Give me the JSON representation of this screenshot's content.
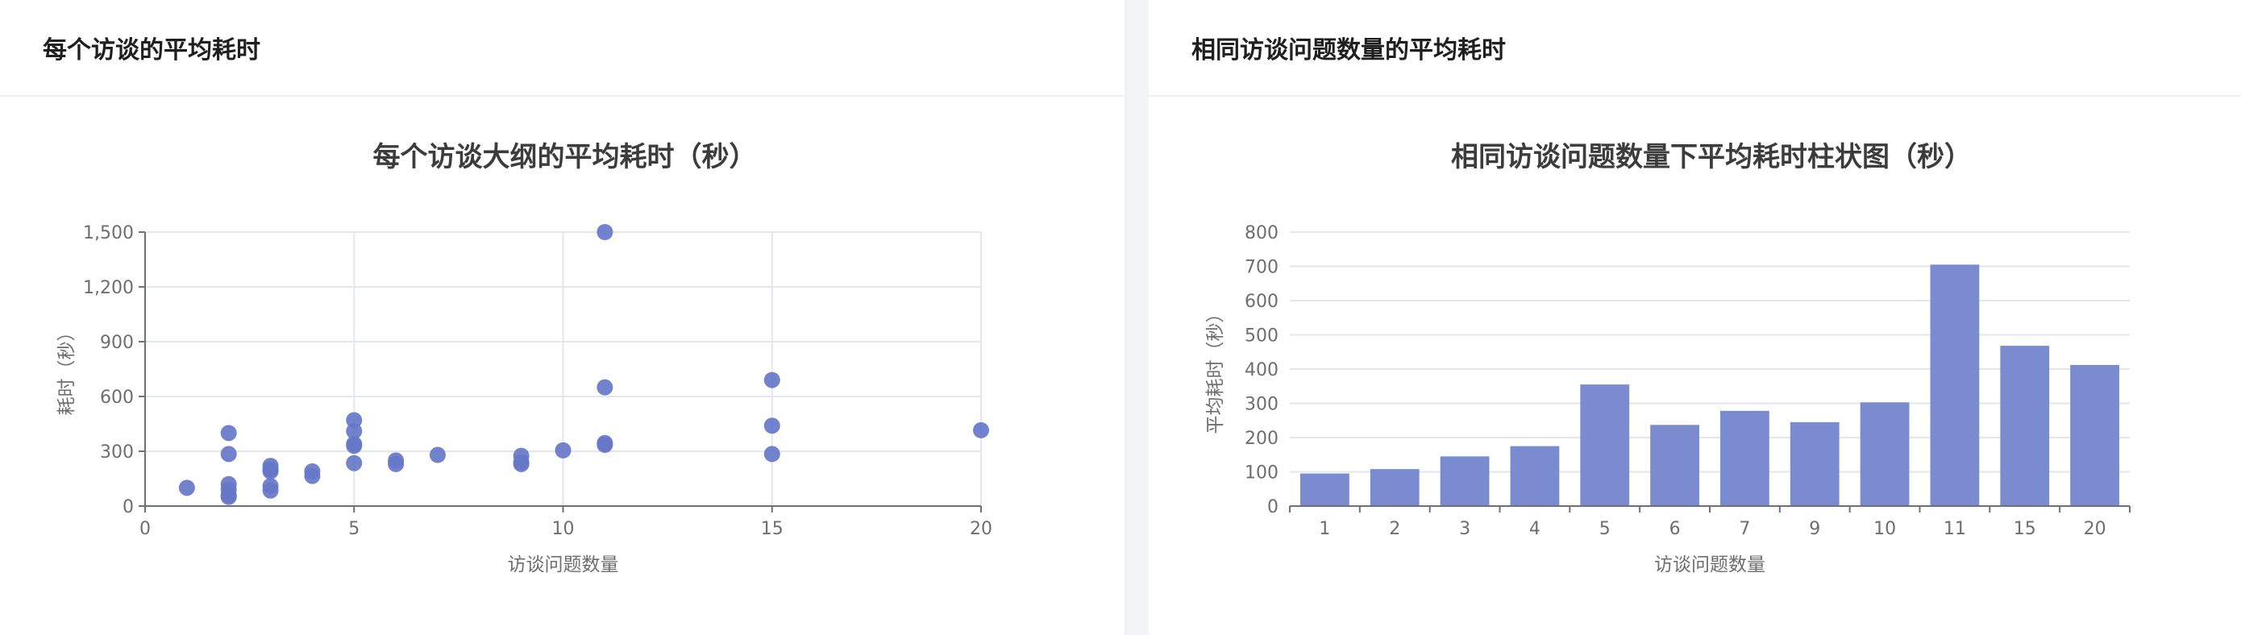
{
  "panels": [
    {
      "header": "每个访谈的平均耗时"
    },
    {
      "header": "相同访谈问题数量的平均耗时"
    }
  ],
  "colors": {
    "point": "#6677c8",
    "bar": "#7a8ccf",
    "grid": "#e3e6ef"
  },
  "chart_data": [
    {
      "type": "scatter",
      "title": "每个访谈大纲的平均耗时（秒）",
      "xlabel": "访谈问题数量",
      "ylabel": "耗时（秒）",
      "xlim": [
        0,
        20
      ],
      "ylim": [
        0,
        1500
      ],
      "xticks": [
        0,
        5,
        10,
        15,
        20
      ],
      "yticks": [
        0,
        300,
        600,
        900,
        1200,
        1500
      ],
      "ytick_labels": [
        "0",
        "300",
        "600",
        "900",
        "1,200",
        "1,500"
      ],
      "points": [
        [
          1,
          100
        ],
        [
          2,
          400
        ],
        [
          2,
          285
        ],
        [
          2,
          120
        ],
        [
          2,
          90
        ],
        [
          2,
          60
        ],
        [
          2,
          50
        ],
        [
          3,
          220
        ],
        [
          3,
          200
        ],
        [
          3,
          190
        ],
        [
          3,
          110
        ],
        [
          3,
          85
        ],
        [
          4,
          190
        ],
        [
          4,
          165
        ],
        [
          5,
          470
        ],
        [
          5,
          410
        ],
        [
          5,
          340
        ],
        [
          5,
          330
        ],
        [
          5,
          235
        ],
        [
          6,
          250
        ],
        [
          6,
          230
        ],
        [
          7,
          280
        ],
        [
          9,
          275
        ],
        [
          9,
          240
        ],
        [
          9,
          230
        ],
        [
          10,
          305
        ],
        [
          11,
          1500
        ],
        [
          11,
          650
        ],
        [
          11,
          345
        ],
        [
          11,
          335
        ],
        [
          15,
          690
        ],
        [
          15,
          440
        ],
        [
          15,
          285
        ],
        [
          20,
          415
        ]
      ]
    },
    {
      "type": "bar",
      "title": "相同访谈问题数量下平均耗时柱状图（秒）",
      "xlabel": "访谈问题数量",
      "ylabel": "平均耗时（秒）",
      "ylim": [
        0,
        800
      ],
      "yticks": [
        0,
        100,
        200,
        300,
        400,
        500,
        600,
        700,
        800
      ],
      "categories": [
        "1",
        "2",
        "3",
        "4",
        "5",
        "6",
        "7",
        "9",
        "10",
        "11",
        "15",
        "20"
      ],
      "values": [
        95,
        108,
        145,
        175,
        355,
        237,
        278,
        245,
        303,
        705,
        468,
        412
      ]
    }
  ]
}
